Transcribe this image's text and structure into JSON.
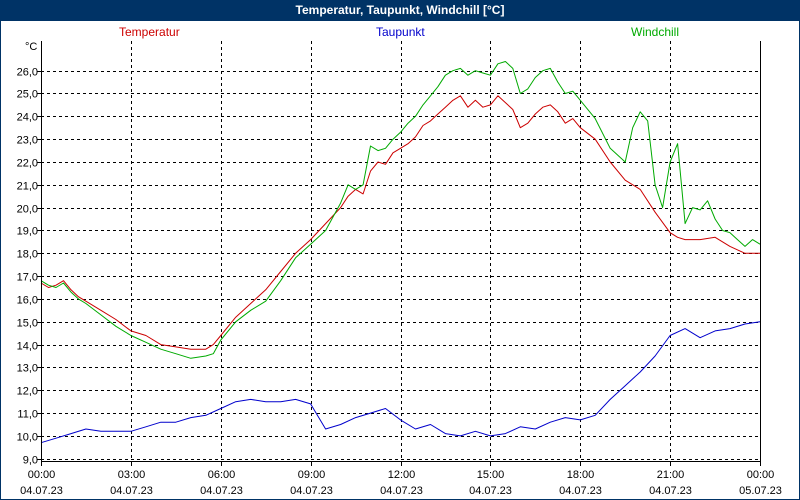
{
  "window": {
    "title": "Temperatur, Taupunkt, Windchill [°C]"
  },
  "chart_data": {
    "type": "line",
    "title": "Temperatur, Taupunkt, Windchill [°C]",
    "ylabel": "°C",
    "xlabel": "",
    "ylim": [
      8.9,
      27.3
    ],
    "xlim": [
      0,
      24
    ],
    "grid": true,
    "yticks": [
      "9,0",
      "10,0",
      "11,0",
      "12,0",
      "13,0",
      "14,0",
      "15,0",
      "16,0",
      "17,0",
      "18,0",
      "19,0",
      "20,0",
      "21,0",
      "22,0",
      "23,0",
      "24,0",
      "25,0",
      "26,0"
    ],
    "xticks": [
      {
        "time": "00:00",
        "date": "04.07.23"
      },
      {
        "time": "03:00",
        "date": "04.07.23"
      },
      {
        "time": "06:00",
        "date": "04.07.23"
      },
      {
        "time": "09:00",
        "date": "04.07.23"
      },
      {
        "time": "12:00",
        "date": "04.07.23"
      },
      {
        "time": "15:00",
        "date": "04.07.23"
      },
      {
        "time": "18:00",
        "date": "04.07.23"
      },
      {
        "time": "21:00",
        "date": "04.07.23"
      },
      {
        "time": "00:00",
        "date": "05.07.23"
      }
    ],
    "series": [
      {
        "name": "Temperatur",
        "color": "#cc0000",
        "x": [
          0,
          0.25,
          0.5,
          0.75,
          1,
          1.25,
          1.5,
          2,
          2.5,
          3,
          3.5,
          4,
          4.5,
          5,
          5.5,
          5.75,
          6,
          6.5,
          7,
          7.5,
          8,
          8.5,
          9,
          9.5,
          10,
          10.25,
          10.5,
          10.75,
          11,
          11.25,
          11.5,
          11.75,
          12,
          12.25,
          12.5,
          12.75,
          13,
          13.25,
          13.5,
          13.75,
          14,
          14.25,
          14.5,
          14.75,
          15,
          15.25,
          15.5,
          15.75,
          16,
          16.25,
          16.5,
          16.75,
          17,
          17.25,
          17.5,
          17.75,
          18,
          18.5,
          19,
          19.5,
          20,
          20.5,
          21,
          21.25,
          21.5,
          22,
          22.5,
          23,
          23.5,
          24
        ],
        "values": [
          16.7,
          16.5,
          16.6,
          16.8,
          16.4,
          16.1,
          15.9,
          15.5,
          15.1,
          14.6,
          14.4,
          14.0,
          13.9,
          13.8,
          13.8,
          14.0,
          14.4,
          15.2,
          15.8,
          16.4,
          17.2,
          18.0,
          18.6,
          19.3,
          20.0,
          20.5,
          20.8,
          20.6,
          21.6,
          22.0,
          21.9,
          22.4,
          22.6,
          22.8,
          23.1,
          23.6,
          23.8,
          24.1,
          24.4,
          24.7,
          24.9,
          24.4,
          24.7,
          24.4,
          24.5,
          24.9,
          24.6,
          24.3,
          23.5,
          23.7,
          24.1,
          24.4,
          24.5,
          24.2,
          23.7,
          23.9,
          23.5,
          23.0,
          22.0,
          21.2,
          20.8,
          19.8,
          18.9,
          18.7,
          18.6,
          18.6,
          18.7,
          18.3,
          18.0,
          18.0
        ]
      },
      {
        "name": "Taupunkt",
        "color": "#0000cc",
        "x": [
          0,
          0.5,
          1,
          1.5,
          2,
          2.5,
          3,
          3.5,
          4,
          4.5,
          5,
          5.5,
          6,
          6.5,
          7,
          7.5,
          8,
          8.5,
          9,
          9.5,
          10,
          10.5,
          11,
          11.5,
          12,
          12.5,
          13,
          13.5,
          14,
          14.5,
          15,
          15.5,
          16,
          16.5,
          17,
          17.5,
          18,
          18.5,
          19,
          19.5,
          20,
          20.5,
          21,
          21.5,
          22,
          22.5,
          23,
          23.5,
          24
        ],
        "values": [
          9.7,
          9.9,
          10.1,
          10.3,
          10.2,
          10.2,
          10.2,
          10.4,
          10.6,
          10.6,
          10.8,
          10.9,
          11.2,
          11.5,
          11.6,
          11.5,
          11.5,
          11.6,
          11.4,
          10.3,
          10.5,
          10.8,
          11.0,
          11.2,
          10.7,
          10.3,
          10.5,
          10.1,
          10.0,
          10.2,
          10.0,
          10.1,
          10.4,
          10.3,
          10.6,
          10.8,
          10.7,
          10.9,
          11.6,
          12.2,
          12.8,
          13.5,
          14.4,
          14.7,
          14.3,
          14.6,
          14.7,
          14.9,
          15.0
        ]
      },
      {
        "name": "Windchill",
        "color": "#00aa00",
        "x": [
          0,
          0.25,
          0.5,
          0.75,
          1,
          1.25,
          1.5,
          2,
          2.5,
          3,
          3.5,
          4,
          4.5,
          5,
          5.5,
          5.75,
          6,
          6.5,
          7,
          7.5,
          8,
          8.5,
          9,
          9.5,
          10,
          10.25,
          10.5,
          10.75,
          11,
          11.25,
          11.5,
          11.75,
          12,
          12.25,
          12.5,
          12.75,
          13,
          13.25,
          13.5,
          13.75,
          14,
          14.25,
          14.5,
          14.75,
          15,
          15.25,
          15.5,
          15.75,
          16,
          16.25,
          16.5,
          16.75,
          17,
          17.25,
          17.5,
          17.75,
          18,
          18.5,
          19,
          19.5,
          19.75,
          20,
          20.25,
          20.5,
          20.75,
          21,
          21.25,
          21.5,
          21.75,
          22,
          22.25,
          22.5,
          22.75,
          23,
          23.25,
          23.5,
          23.75,
          24
        ],
        "values": [
          16.8,
          16.6,
          16.5,
          16.7,
          16.3,
          16.0,
          15.8,
          15.3,
          14.8,
          14.4,
          14.1,
          13.8,
          13.6,
          13.4,
          13.5,
          13.6,
          14.2,
          15.0,
          15.5,
          15.9,
          16.8,
          17.8,
          18.4,
          19.0,
          20.2,
          21.0,
          20.8,
          21.0,
          22.7,
          22.5,
          22.6,
          23.0,
          23.3,
          23.7,
          24.0,
          24.5,
          24.9,
          25.3,
          25.8,
          26.0,
          26.1,
          25.8,
          26.0,
          25.9,
          25.8,
          26.3,
          26.4,
          26.1,
          25.0,
          25.2,
          25.7,
          26.0,
          26.1,
          25.5,
          25.0,
          25.1,
          24.7,
          23.9,
          22.6,
          22.0,
          23.5,
          24.2,
          23.8,
          21.0,
          20.0,
          22.0,
          22.8,
          19.3,
          20.0,
          19.9,
          20.3,
          19.5,
          19.0,
          18.9,
          18.6,
          18.3,
          18.6,
          18.4
        ]
      }
    ]
  }
}
